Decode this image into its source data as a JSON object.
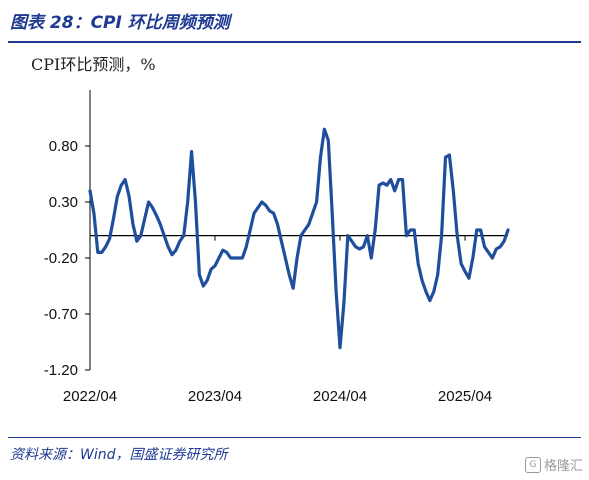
{
  "figure_title": "图表 28：CPI 环比周频预测",
  "source": "资料来源：Wind，国盛证券研究所",
  "watermark": "格隆汇",
  "colors": {
    "line": "#1f4e9c",
    "accent": "#1f3a93"
  },
  "chart_data": {
    "type": "line",
    "title": "",
    "ylabel": "CPI环比预测，%",
    "xlabel": "",
    "ylim": [
      -1.2,
      1.3
    ],
    "yticks": [
      0.8,
      0.3,
      -0.2,
      -0.7,
      -1.2
    ],
    "ytick_labels": [
      "0.80",
      "0.30",
      "-0.20",
      "-0.70",
      "-1.20"
    ],
    "x_ticks": [
      "2022/04",
      "2023/04",
      "2024/04",
      "2025/04"
    ],
    "grid": false,
    "legend": "none",
    "series": [
      {
        "values": [
          0.4,
          0.2,
          -0.15,
          -0.15,
          -0.1,
          -0.03,
          0.15,
          0.35,
          0.45,
          0.5,
          0.35,
          0.1,
          -0.05,
          0.0,
          0.15,
          0.3,
          0.25,
          0.18,
          0.1,
          0.0,
          -0.1,
          -0.17,
          -0.13,
          -0.05,
          0.0,
          0.3,
          0.75,
          0.3,
          -0.35,
          -0.45,
          -0.4,
          -0.3,
          -0.27,
          -0.2,
          -0.13,
          -0.15,
          -0.2,
          -0.2,
          -0.2,
          -0.2,
          -0.1,
          0.05,
          0.2,
          0.25,
          0.3,
          0.27,
          0.22,
          0.2,
          0.1,
          -0.05,
          -0.2,
          -0.35,
          -0.47,
          -0.2,
          0.0,
          0.05,
          0.1,
          0.2,
          0.3,
          0.7,
          0.95,
          0.85,
          0.2,
          -0.5,
          -1.0,
          -0.6,
          0.0,
          -0.05,
          -0.1,
          -0.12,
          -0.1,
          0.0,
          -0.2,
          0.05,
          0.45,
          0.47,
          0.45,
          0.5,
          0.4,
          0.5,
          0.5,
          0.0,
          0.05,
          0.05,
          -0.25,
          -0.4,
          -0.5,
          -0.58,
          -0.5,
          -0.35,
          0.0,
          0.7,
          0.72,
          0.4,
          0.0,
          -0.25,
          -0.32,
          -0.38,
          -0.2,
          0.05,
          0.05,
          -0.1,
          -0.15,
          -0.2,
          -0.12,
          -0.1,
          -0.05,
          0.05
        ]
      }
    ]
  }
}
